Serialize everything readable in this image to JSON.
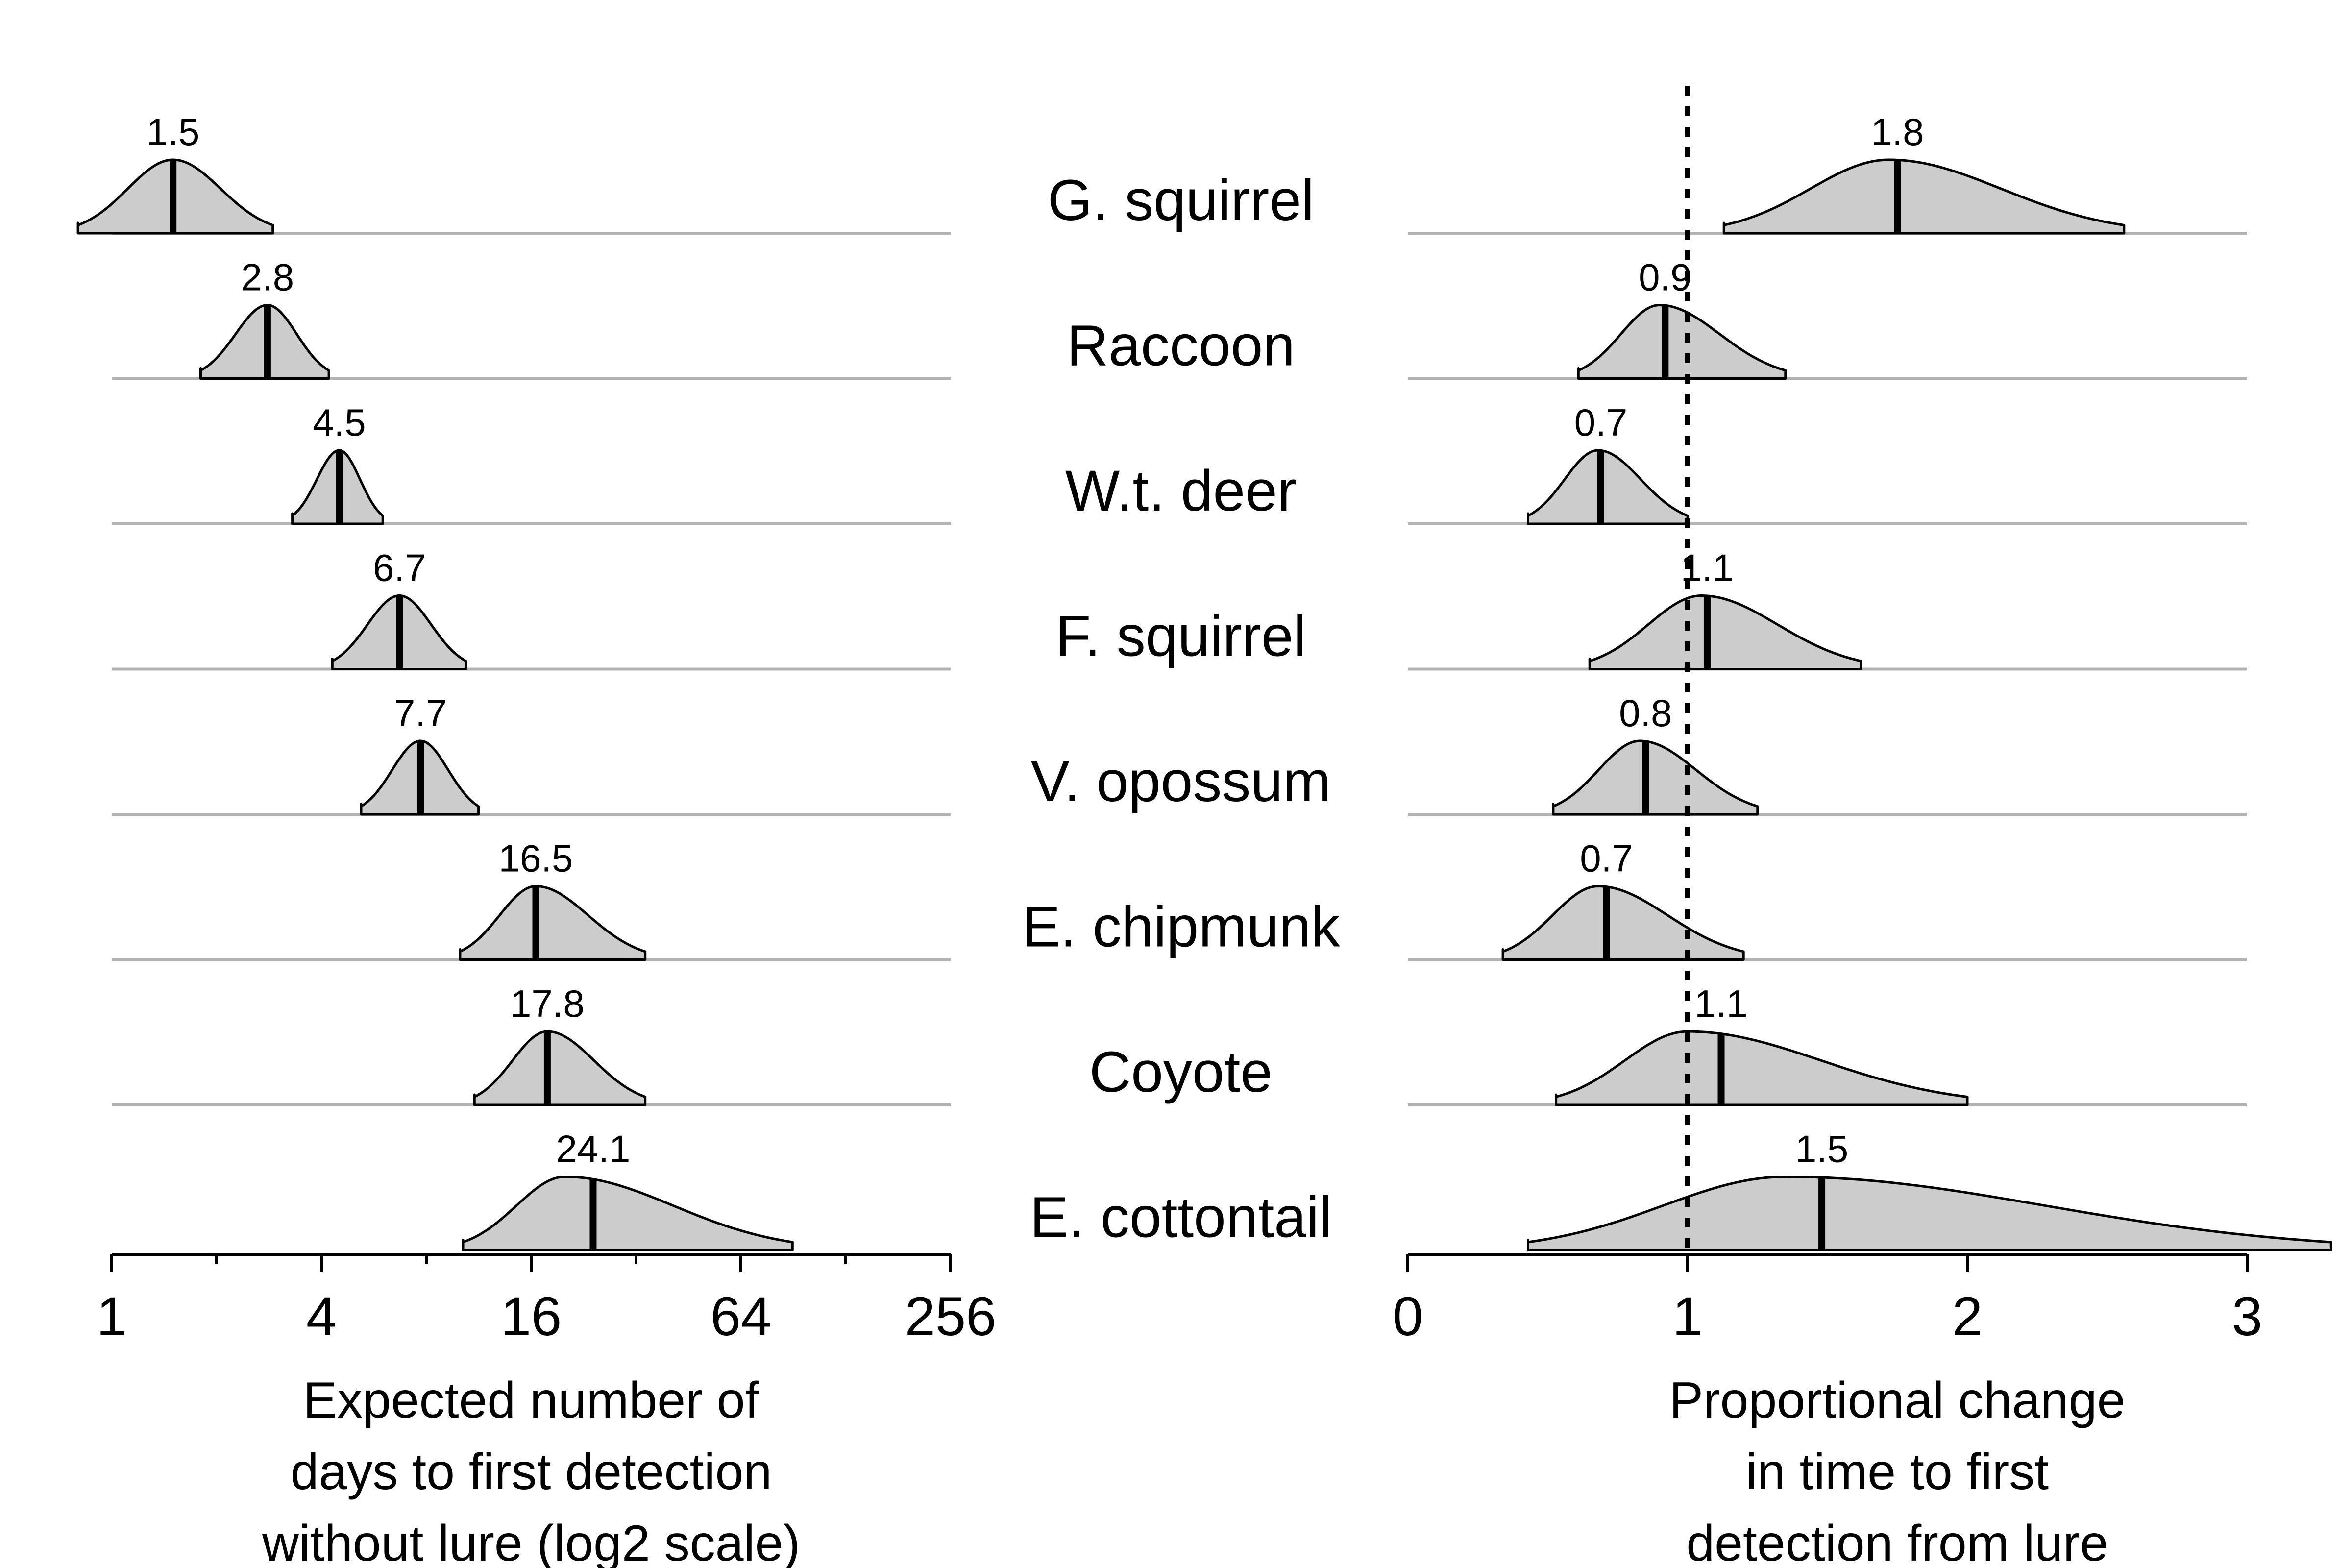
{
  "species": [
    "G. squirrel",
    "Raccoon",
    "W.t. deer",
    "F. squirrel",
    "V. opossum",
    "E. chipmunk",
    "Coyote",
    "E. cottontail"
  ],
  "chart_data": [
    {
      "type": "area",
      "panel": "left",
      "xscale": "log2",
      "xlim": [
        1,
        256
      ],
      "xticks": [
        1,
        4,
        16,
        64,
        256
      ],
      "xtick_labels": [
        "1",
        "4",
        "16",
        "64",
        "256"
      ],
      "xlabel": [
        "Expected number of",
        "days to first detection",
        "without lure (log2 scale)"
      ],
      "series": [
        {
          "category": "G. squirrel",
          "median": 1.5,
          "median_label": "1.5",
          "lower": 0.8,
          "upper": 2.9,
          "mode": 1.5
        },
        {
          "category": "Raccoon",
          "median": 2.8,
          "median_label": "2.8",
          "lower": 1.8,
          "upper": 4.2,
          "mode": 2.8
        },
        {
          "category": "W.t. deer",
          "median": 4.5,
          "median_label": "4.5",
          "lower": 3.3,
          "upper": 6.0,
          "mode": 4.5
        },
        {
          "category": "F. squirrel",
          "median": 6.7,
          "median_label": "6.7",
          "lower": 4.3,
          "upper": 10.4,
          "mode": 6.7
        },
        {
          "category": "V. opossum",
          "median": 7.7,
          "median_label": "7.7",
          "lower": 5.2,
          "upper": 11.3,
          "mode": 7.7
        },
        {
          "category": "E. chipmunk",
          "median": 16.5,
          "median_label": "16.5",
          "lower": 10.0,
          "upper": 34.0,
          "mode": 16.5
        },
        {
          "category": "Coyote",
          "median": 17.8,
          "median_label": "17.8",
          "lower": 11.0,
          "upper": 34.0,
          "mode": 17.8
        },
        {
          "category": "E. cottontail",
          "median": 24.1,
          "median_label": "24.1",
          "lower": 10.2,
          "upper": 90.0,
          "mode": 20.0
        }
      ]
    },
    {
      "type": "area",
      "panel": "right",
      "xscale": "linear",
      "xlim": [
        0,
        3.3
      ],
      "xticks": [
        0,
        1,
        2,
        3
      ],
      "xtick_labels": [
        "0",
        "1",
        "2",
        "3"
      ],
      "reference_line": 1,
      "xlabel": [
        "Proportional change",
        "in time to first",
        "detection from lure"
      ],
      "series": [
        {
          "category": "G. squirrel",
          "median": 1.75,
          "median_label": "1.8",
          "lower": 1.13,
          "upper": 2.56,
          "mode": 1.72
        },
        {
          "category": "Raccoon",
          "median": 0.92,
          "median_label": "0.9",
          "lower": 0.61,
          "upper": 1.35,
          "mode": 0.9
        },
        {
          "category": "W.t. deer",
          "median": 0.69,
          "median_label": "0.7",
          "lower": 0.43,
          "upper": 1.0,
          "mode": 0.68
        },
        {
          "category": "F. squirrel",
          "median": 1.07,
          "median_label": "1.1",
          "lower": 0.65,
          "upper": 1.62,
          "mode": 1.05
        },
        {
          "category": "V. opossum",
          "median": 0.85,
          "median_label": "0.8",
          "lower": 0.52,
          "upper": 1.25,
          "mode": 0.83
        },
        {
          "category": "E. chipmunk",
          "median": 0.71,
          "median_label": "0.7",
          "lower": 0.34,
          "upper": 1.2,
          "mode": 0.68
        },
        {
          "category": "Coyote",
          "median": 1.12,
          "median_label": "1.1",
          "lower": 0.53,
          "upper": 2.0,
          "mode": 1.0
        },
        {
          "category": "E. cottontail",
          "median": 1.48,
          "median_label": "1.5",
          "lower": 0.43,
          "upper": 3.3,
          "mode": 1.35
        }
      ]
    }
  ]
}
